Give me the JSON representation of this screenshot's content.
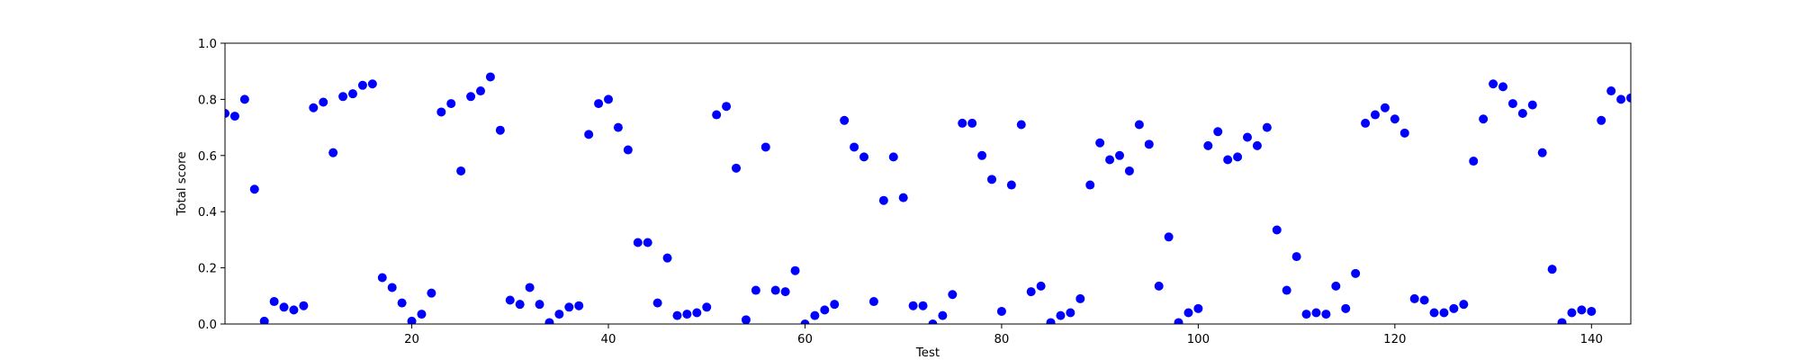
{
  "chart_data": {
    "type": "scatter",
    "xlabel": "Test",
    "ylabel": "Total score",
    "xlim": [
      1,
      144
    ],
    "ylim": [
      0,
      1
    ],
    "x_ticks": [
      20,
      40,
      60,
      80,
      100,
      120,
      140
    ],
    "x_tick_labels": [
      "20",
      "40",
      "60",
      "80",
      "100",
      "120",
      "140"
    ],
    "y_ticks": [
      0,
      0.2,
      0.4,
      0.6,
      0.8,
      1.0
    ],
    "y_tick_labels": [
      "0.0",
      "0.2",
      "0.4",
      "0.6",
      "0.8",
      "1.0"
    ],
    "grid": false,
    "marker_color": "#0000ff",
    "series": [
      {
        "x": [
          1,
          2,
          3,
          4,
          5,
          6,
          7,
          8,
          9,
          10,
          11,
          12,
          13,
          14,
          15,
          16,
          17,
          18,
          19,
          20,
          21,
          22,
          23,
          24,
          25,
          26,
          27,
          28,
          29,
          30,
          31,
          32,
          33,
          34,
          35,
          36,
          37,
          38,
          39,
          40,
          41,
          42,
          43,
          44,
          45,
          46,
          47,
          48,
          49,
          50,
          51,
          52,
          53,
          54,
          55,
          56,
          57,
          58,
          59,
          60,
          61,
          62,
          63,
          64,
          65,
          66,
          67,
          68,
          69,
          70,
          71,
          72,
          73,
          74,
          75,
          76,
          77,
          78,
          79,
          80,
          81,
          82,
          83,
          84,
          85,
          86,
          87,
          88,
          89,
          90,
          91,
          92,
          93,
          94,
          95,
          96,
          97,
          98,
          99,
          100,
          101,
          102,
          103,
          104,
          105,
          106,
          107,
          108,
          109,
          110,
          111,
          112,
          113,
          114,
          115,
          116,
          117,
          118,
          119,
          120,
          121,
          122,
          123,
          124,
          125,
          126,
          127,
          128,
          129,
          130,
          131,
          132,
          133,
          134,
          135,
          136,
          137,
          138,
          139,
          140,
          141,
          142,
          143,
          144
        ],
        "y": [
          0.75,
          0.74,
          0.8,
          0.48,
          0.01,
          0.08,
          0.06,
          0.05,
          0.065,
          0.77,
          0.79,
          0.61,
          0.81,
          0.82,
          0.85,
          0.855,
          0.165,
          0.13,
          0.075,
          0.01,
          0.035,
          0.11,
          0.755,
          0.785,
          0.545,
          0.81,
          0.83,
          0.88,
          0.69,
          0.085,
          0.07,
          0.13,
          0.07,
          0.005,
          0.035,
          0.06,
          0.065,
          0.675,
          0.785,
          0.8,
          0.7,
          0.62,
          0.29,
          0.29,
          0.075,
          0.235,
          0.03,
          0.035,
          0.04,
          0.06,
          0.745,
          0.775,
          0.555,
          0.015,
          0.12,
          0.63,
          0.12,
          0.115,
          0.19,
          0.0,
          0.03,
          0.05,
          0.07,
          0.725,
          0.63,
          0.595,
          0.08,
          0.44,
          0.595,
          0.45,
          0.065,
          0.065,
          0.0,
          0.03,
          0.105,
          0.715,
          0.715,
          0.6,
          0.515,
          0.045,
          0.495,
          0.71,
          0.115,
          0.135,
          0.005,
          0.03,
          0.04,
          0.09,
          0.495,
          0.645,
          0.585,
          0.6,
          0.545,
          0.71,
          0.64,
          0.135,
          0.31,
          0.005,
          0.04,
          0.055,
          0.635,
          0.685,
          0.585,
          0.595,
          0.665,
          0.635,
          0.7,
          0.335,
          0.12,
          0.24,
          0.035,
          0.04,
          0.035,
          0.135,
          0.055,
          0.18,
          0.715,
          0.745,
          0.77,
          0.73,
          0.68,
          0.09,
          0.085,
          0.04,
          0.04,
          0.055,
          0.07,
          0.58,
          0.73,
          0.855,
          0.845,
          0.785,
          0.75,
          0.78,
          0.61,
          0.195,
          0.005,
          0.04,
          0.05,
          0.045,
          0.725,
          0.83,
          0.8,
          0.805
        ]
      }
    ]
  }
}
